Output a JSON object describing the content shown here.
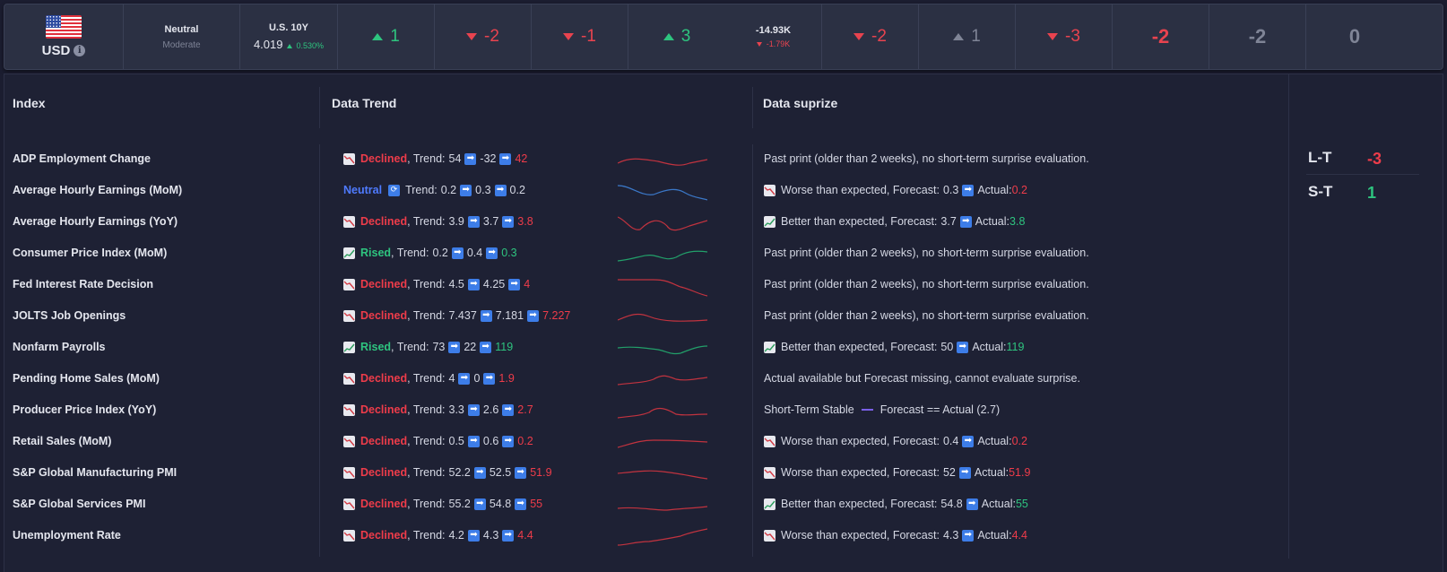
{
  "currency": {
    "code": "USD",
    "info_icon": "info-icon",
    "flag_icon": "us-flag-icon"
  },
  "sentiment": {
    "main": "Neutral",
    "sub": "Moderate"
  },
  "bond": {
    "title": "U.S. 10Y",
    "value": "4.019",
    "change": "0.530%"
  },
  "scores": [
    {
      "value": "1",
      "dir": "up",
      "color": "green"
    },
    {
      "value": "-2",
      "dir": "down",
      "color": "red"
    },
    {
      "value": "-1",
      "dir": "down",
      "color": "red"
    },
    {
      "value": "3",
      "dir": "up",
      "color": "green"
    }
  ],
  "flow": {
    "top": "-14.93K",
    "bottom": "-1.79K"
  },
  "scores2": [
    {
      "value": "-2",
      "dir": "down",
      "color": "red"
    },
    {
      "value": "1",
      "dir": "up",
      "color": "gray"
    },
    {
      "value": "-3",
      "dir": "down",
      "color": "red"
    },
    {
      "value": "-2",
      "dir": "none",
      "color": "red"
    },
    {
      "value": "-2",
      "dir": "none",
      "color": "gray"
    },
    {
      "value": "0",
      "dir": "none",
      "color": "gray"
    }
  ],
  "headers": {
    "index": "Index",
    "trend": "Data Trend",
    "surprise": "Data suprize"
  },
  "rows": [
    {
      "name": "ADP Employment Change",
      "status": "Declined",
      "trend": [
        "54",
        "-32",
        "42"
      ],
      "surprise": {
        "kind": "text",
        "text": "Past print (older than 2 weeks), no short-term surprise evaluation."
      }
    },
    {
      "name": "Average Hourly Earnings (MoM)",
      "status": "Neutral",
      "trend": [
        "0.2",
        "0.3",
        "0.2"
      ],
      "surprise": {
        "kind": "worse",
        "label": "Worse than expected, Forecast:",
        "forecast": "0.3",
        "actual": "0.2"
      }
    },
    {
      "name": "Average Hourly Earnings (YoY)",
      "status": "Declined",
      "trend": [
        "3.9",
        "3.7",
        "3.8"
      ],
      "surprise": {
        "kind": "better",
        "label": "Better than expected, Forecast:",
        "forecast": "3.7",
        "actual": "3.8"
      }
    },
    {
      "name": "Consumer Price Index (MoM)",
      "status": "Rised",
      "trend": [
        "0.2",
        "0.4",
        "0.3"
      ],
      "surprise": {
        "kind": "text",
        "text": "Past print (older than 2 weeks), no short-term surprise evaluation."
      }
    },
    {
      "name": "Fed Interest Rate Decision",
      "status": "Declined",
      "trend": [
        "4.5",
        "4.25",
        "4"
      ],
      "surprise": {
        "kind": "text",
        "text": "Past print (older than 2 weeks), no short-term surprise evaluation."
      }
    },
    {
      "name": "JOLTS Job Openings",
      "status": "Declined",
      "trend": [
        "7.437",
        "7.181",
        "7.227"
      ],
      "surprise": {
        "kind": "text",
        "text": "Past print (older than 2 weeks), no short-term surprise evaluation."
      }
    },
    {
      "name": "Nonfarm Payrolls",
      "status": "Rised",
      "trend": [
        "73",
        "22",
        "119"
      ],
      "surprise": {
        "kind": "better",
        "label": "Better than expected, Forecast:",
        "forecast": "50",
        "actual": "119"
      }
    },
    {
      "name": "Pending Home Sales (MoM)",
      "status": "Declined",
      "trend": [
        "4",
        "0",
        "1.9"
      ],
      "surprise": {
        "kind": "text",
        "text": "Actual available but Forecast missing, cannot evaluate surprise."
      }
    },
    {
      "name": "Producer Price Index (YoY)",
      "status": "Declined",
      "trend": [
        "3.3",
        "2.6",
        "2.7"
      ],
      "surprise": {
        "kind": "stable",
        "label": "Short-Term Stable",
        "text": "Forecast == Actual (2.7)"
      }
    },
    {
      "name": "Retail Sales (MoM)",
      "status": "Declined",
      "trend": [
        "0.5",
        "0.6",
        "0.2"
      ],
      "surprise": {
        "kind": "worse",
        "label": "Worse than expected, Forecast:",
        "forecast": "0.4",
        "actual": "0.2"
      }
    },
    {
      "name": "S&P Global Manufacturing PMI",
      "status": "Declined",
      "trend": [
        "52.2",
        "52.5",
        "51.9"
      ],
      "surprise": {
        "kind": "worse",
        "label": "Worse than expected, Forecast:",
        "forecast": "52",
        "actual": "51.9"
      }
    },
    {
      "name": "S&P Global Services PMI",
      "status": "Declined",
      "trend": [
        "55.2",
        "54.8",
        "55"
      ],
      "surprise": {
        "kind": "better",
        "label": "Better than expected, Forecast:",
        "forecast": "54.8",
        "actual": "55"
      }
    },
    {
      "name": "Unemployment Rate",
      "status": "Declined",
      "trend": [
        "4.2",
        "4.3",
        "4.4"
      ],
      "surprise": {
        "kind": "worse",
        "label": "Worse than expected, Forecast:",
        "forecast": "4.3",
        "actual": "4.4"
      }
    }
  ],
  "labels": {
    "trend_prefix": ", Trend: ",
    "actual_prefix": "Actual: "
  },
  "summary": {
    "lt_label": "L-T",
    "lt_value": "-3",
    "st_label": "S-T",
    "st_value": "1"
  },
  "colors": {
    "green": "#2ec47f",
    "red": "#ee3c4a",
    "blue": "#4f7bff",
    "gray": "#7f8496",
    "spark_red": "#c2333f",
    "spark_green": "#22a06a",
    "spark_blue": "#3b78c8"
  }
}
